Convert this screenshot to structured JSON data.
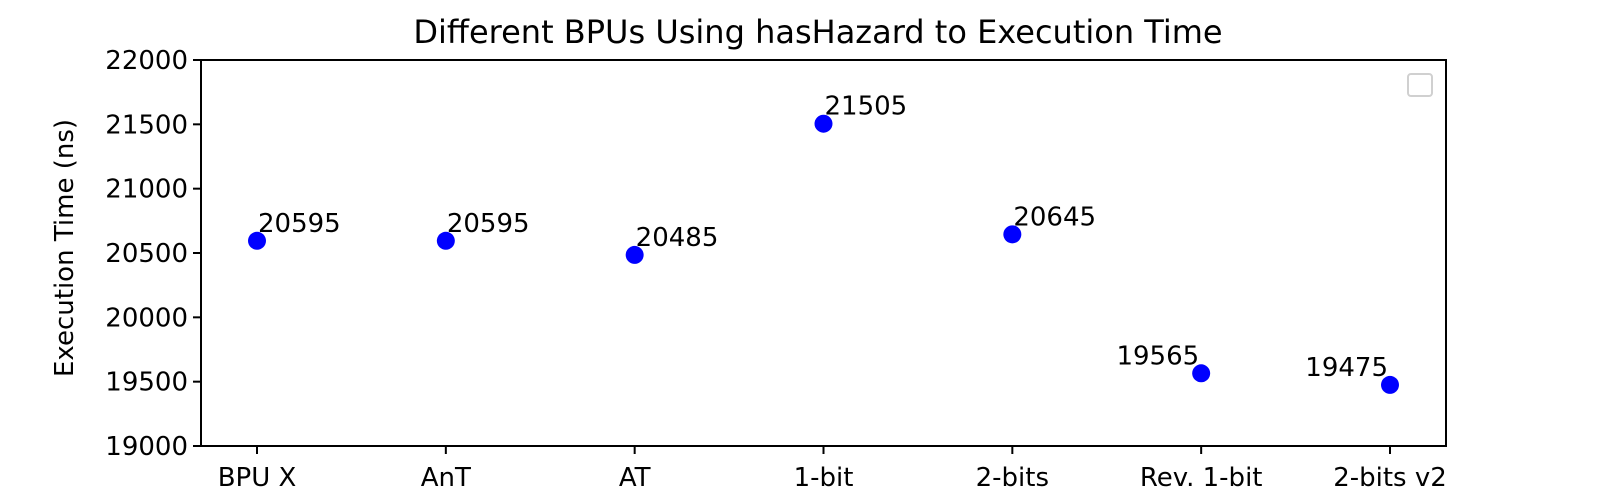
{
  "chart_data": {
    "type": "scatter",
    "title": "Different BPUs Using hasHazard to Execution Time",
    "xlabel": "",
    "ylabel": "Execution Time (ns)",
    "categories": [
      "BPU X",
      "AnT",
      "AT",
      "1-bit",
      "2-bits",
      "Rev. 1-bit",
      "2-bits v2"
    ],
    "series": [
      {
        "values": [
          20595,
          20595,
          20485,
          21505,
          20645,
          19565,
          19475
        ],
        "labels": [
          "20595",
          "20595",
          "20485",
          "21505",
          "20645",
          "19565",
          "19475"
        ],
        "color": "#0000ff"
      }
    ],
    "ylim": [
      19000,
      22000
    ],
    "yticks": [
      19000,
      19500,
      20000,
      20500,
      21000,
      21500,
      22000
    ],
    "grid": false,
    "legend": {
      "placement": "upper-right",
      "entries": []
    }
  }
}
